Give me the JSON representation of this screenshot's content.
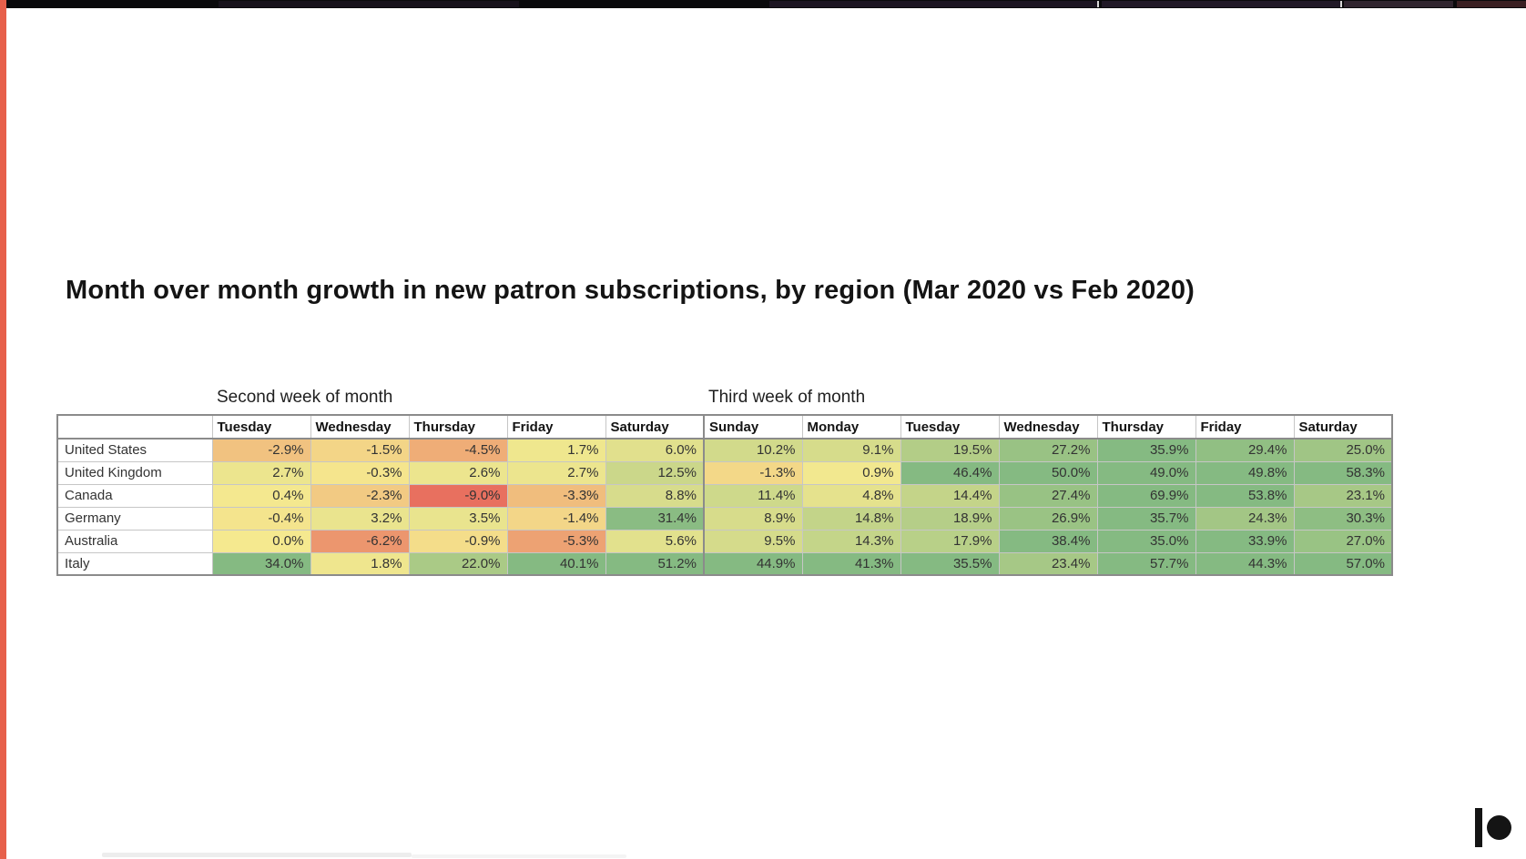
{
  "slide": {
    "title": "Month over month growth in new patron subscriptions, by region (Mar 2020 vs Feb 2020)"
  },
  "table": {
    "corner_label": "",
    "group_headers": [
      {
        "label": "Second week of month",
        "span": 5
      },
      {
        "label": "Third week of month",
        "span": 7
      }
    ],
    "day_headers": [
      "Tuesday",
      "Wednesday",
      "Thursday",
      "Friday",
      "Saturday",
      "Sunday",
      "Monday",
      "Tuesday",
      "Wednesday",
      "Thursday",
      "Friday",
      "Saturday"
    ],
    "regions": [
      "United States",
      "United Kingdom",
      "Canada",
      "Germany",
      "Australia",
      "Italy"
    ]
  },
  "heatmap_scale": {
    "red": "#e8705f",
    "yellow": "#f5e98f",
    "green": "#85ba82",
    "min": -9,
    "green_cap": 33,
    "description": "negative values shade yellow to red, positive values shade yellow to green"
  },
  "branding": {
    "logo": "patreon-logo",
    "logo_color": "#141414",
    "accent_bar_color": "#e7604b"
  },
  "chart_data": {
    "type": "heatmap",
    "title": "Month over month growth in new patron subscriptions, by region (Mar 2020 vs Feb 2020)",
    "unit": "%",
    "row_dimension": "region",
    "rows": [
      "United States",
      "United Kingdom",
      "Canada",
      "Germany",
      "Australia",
      "Italy"
    ],
    "column_groups": [
      {
        "label": "Second week of month",
        "columns": [
          "Tuesday",
          "Wednesday",
          "Thursday",
          "Friday",
          "Saturday"
        ]
      },
      {
        "label": "Third week of month",
        "columns": [
          "Sunday",
          "Monday",
          "Tuesday",
          "Wednesday",
          "Thursday",
          "Friday",
          "Saturday"
        ]
      }
    ],
    "columns": [
      "Tuesday",
      "Wednesday",
      "Thursday",
      "Friday",
      "Saturday",
      "Sunday",
      "Monday",
      "Tuesday",
      "Wednesday",
      "Thursday",
      "Friday",
      "Saturday"
    ],
    "values": [
      [
        -2.9,
        -1.5,
        -4.5,
        1.7,
        6.0,
        10.2,
        9.1,
        19.5,
        27.2,
        35.9,
        29.4,
        25.0
      ],
      [
        2.7,
        -0.3,
        2.6,
        2.7,
        12.5,
        -1.3,
        0.9,
        46.4,
        50.0,
        49.0,
        49.8,
        58.3
      ],
      [
        0.4,
        -2.3,
        -9.0,
        -3.3,
        8.8,
        11.4,
        4.8,
        14.4,
        27.4,
        69.9,
        53.8,
        23.1
      ],
      [
        -0.4,
        3.2,
        3.5,
        -1.4,
        31.4,
        8.9,
        14.8,
        18.9,
        26.9,
        35.7,
        24.3,
        30.3
      ],
      [
        0.0,
        -6.2,
        -0.9,
        -5.3,
        5.6,
        9.5,
        14.3,
        17.9,
        38.4,
        35.0,
        33.9,
        27.0
      ],
      [
        34.0,
        1.8,
        22.0,
        40.1,
        51.2,
        44.9,
        41.3,
        35.5,
        23.4,
        57.7,
        44.3,
        57.0
      ]
    ],
    "color_scale": "3-color scale: red (min -9.0) to yellow (0) to green (high positive)",
    "legend_position": "none",
    "grid": true
  }
}
